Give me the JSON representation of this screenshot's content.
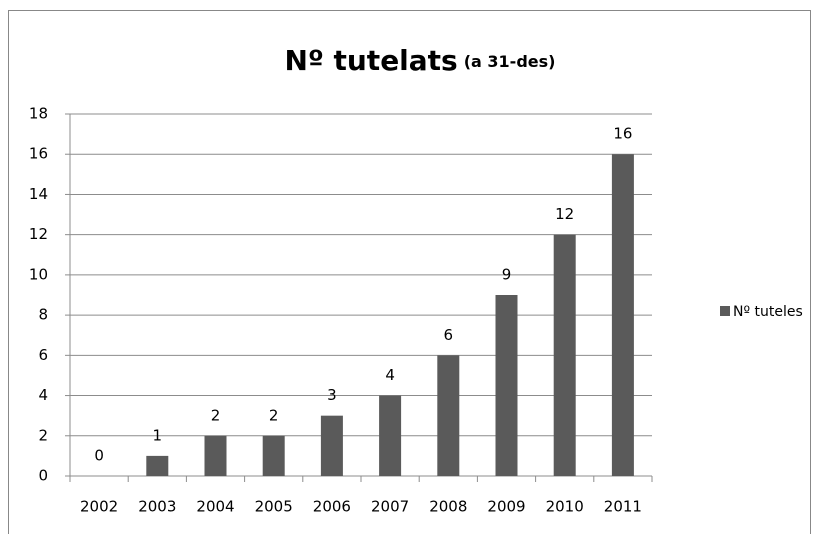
{
  "chart_data": {
    "type": "bar",
    "title": "Nº tutelats",
    "subtitle": "(a 31-des)",
    "categories": [
      "2002",
      "2003",
      "2004",
      "2005",
      "2006",
      "2007",
      "2008",
      "2009",
      "2010",
      "2011"
    ],
    "series": [
      {
        "name": "Nº tuteles",
        "color": "#5a5a5a",
        "values": [
          0,
          1,
          2,
          2,
          3,
          4,
          6,
          9,
          12,
          16
        ]
      }
    ],
    "ylim": [
      0,
      18
    ],
    "yticks": [
      0,
      2,
      4,
      6,
      8,
      10,
      12,
      14,
      16,
      18
    ],
    "grid": true,
    "legend": "right"
  }
}
